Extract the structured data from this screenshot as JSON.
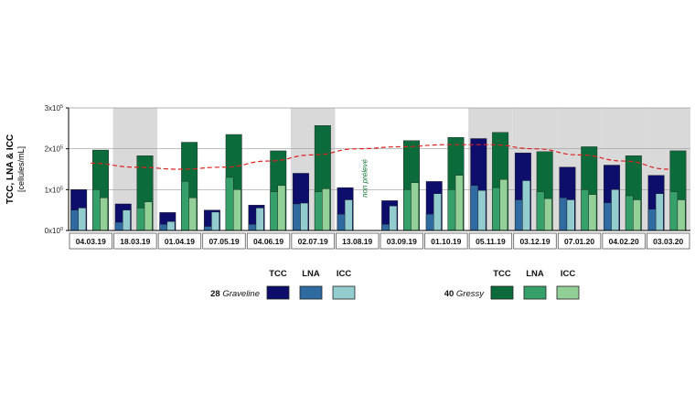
{
  "chart_data": {
    "type": "bar",
    "ylabel_line1": "TCC, LNA & ICC",
    "ylabel_line2": "[cellules/mL]",
    "y_ticks": [
      {
        "value": 0,
        "base": "0x10",
        "exp": "0"
      },
      {
        "value": 100000,
        "base": "1x10",
        "exp": "5"
      },
      {
        "value": 200000,
        "base": "2x10",
        "exp": "5"
      },
      {
        "value": 300000,
        "base": "3x10",
        "exp": "5"
      }
    ],
    "ylim": [
      0,
      300000
    ],
    "categories": [
      "04.03.19",
      "18.03.19",
      "01.04.19",
      "07.05.19",
      "04.06.19",
      "02.07.19",
      "13.08.19",
      "03.09.19",
      "01.10.19",
      "05.11.19",
      "03.12.19",
      "07.01.20",
      "04.02.20",
      "03.03.20"
    ],
    "shaded_categories": [
      1,
      5,
      9,
      10,
      11,
      12,
      13
    ],
    "series": [
      {
        "name": "Graveline TCC",
        "values": [
          100000,
          65000,
          44000,
          50000,
          62000,
          140000,
          105000,
          73000,
          120000,
          225000,
          190000,
          155000,
          160000,
          135000
        ]
      },
      {
        "name": "Graveline LNA",
        "values": [
          50000,
          20000,
          15000,
          10000,
          15000,
          65000,
          40000,
          15000,
          40000,
          110000,
          75000,
          80000,
          68000,
          52000
        ]
      },
      {
        "name": "Graveline ICC",
        "values": [
          55000,
          50000,
          22000,
          45000,
          55000,
          67000,
          75000,
          60000,
          90000,
          98000,
          122000,
          75000,
          100000,
          90000
        ]
      },
      {
        "name": "Gressy TCC",
        "values": [
          197000,
          183000,
          216000,
          235000,
          195000,
          257000,
          null,
          220000,
          228000,
          240000,
          193000,
          205000,
          183000,
          195000
        ]
      },
      {
        "name": "Gressy LNA",
        "values": [
          100000,
          55000,
          120000,
          130000,
          95000,
          95000,
          null,
          100000,
          100000,
          105000,
          95000,
          100000,
          85000,
          95000
        ]
      },
      {
        "name": "Gressy ICC",
        "values": [
          80000,
          70000,
          80000,
          100000,
          110000,
          102000,
          null,
          117000,
          135000,
          125000,
          78000,
          88000,
          75000,
          75000
        ]
      }
    ],
    "trend_line": [
      165000,
      155000,
      150000,
      155000,
      170000,
      185000,
      200000,
      205000,
      210000,
      210000,
      200000,
      185000,
      170000,
      150000
    ],
    "annotations": [
      {
        "category": "13.08.19",
        "text": "non prélevé"
      }
    ],
    "legend": {
      "groups": [
        {
          "site_number": "28",
          "site_name": "Graveline",
          "labels": [
            "TCC",
            "LNA",
            "ICC"
          ],
          "colors": [
            "#0d0d6b",
            "#2f6aa0",
            "#93ccce"
          ]
        },
        {
          "site_number": "40",
          "site_name": "Gressy",
          "labels": [
            "TCC",
            "LNA",
            "ICC"
          ],
          "colors": [
            "#0b6b3a",
            "#35a06a",
            "#92d098"
          ]
        }
      ]
    },
    "colors": {
      "graveline_tcc": "#0d0d6b",
      "graveline_lna": "#2f6aa0",
      "graveline_icc": "#93ccce",
      "gressy_tcc": "#0b6b3a",
      "gressy_lna": "#35a06a",
      "gressy_icc": "#92d098",
      "trend": "#e02020",
      "shading": "#d9d9d9",
      "annotation": "#1a7a3a"
    }
  }
}
